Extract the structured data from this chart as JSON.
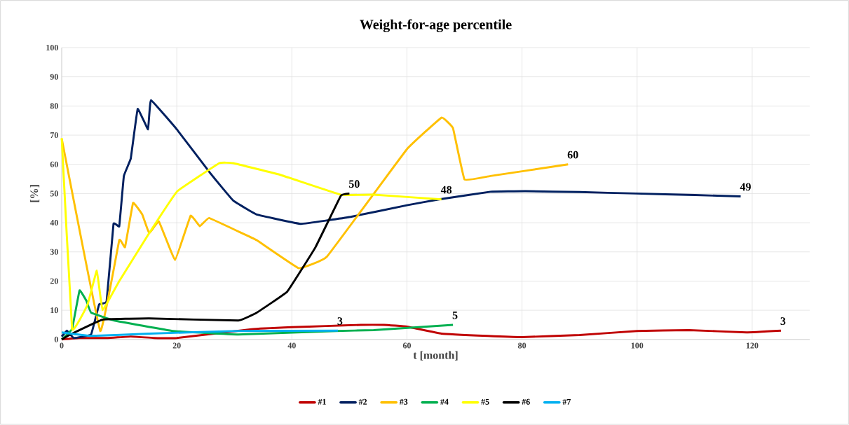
{
  "chart_data": {
    "type": "line",
    "title": "Weight-for-age percentile",
    "xlabel": "t [month]",
    "ylabel": "[%]",
    "xlim": [
      0,
      130
    ],
    "xticks": [
      0,
      20,
      40,
      60,
      80,
      100,
      120
    ],
    "ylim": [
      0,
      100
    ],
    "yticks": [
      0,
      10,
      20,
      30,
      40,
      50,
      60,
      70,
      80,
      90,
      100
    ],
    "grid": true,
    "legend": "bottom",
    "marker": "none",
    "line_style": "solid",
    "series": [
      {
        "name": "#1",
        "color": "#c00000",
        "x": [
          0,
          3,
          8,
          12,
          16,
          20,
          33,
          40,
          46,
          52,
          56,
          60,
          66,
          74,
          80,
          90,
          100,
          109,
          119,
          125
        ],
        "values": [
          0,
          0.5,
          0.5,
          1,
          0.5,
          0.5,
          3.5,
          4.2,
          4.6,
          5,
          5,
          4.4,
          2,
          1.2,
          0.8,
          1.5,
          2.9,
          3.2,
          2.4,
          3
        ]
      },
      {
        "name": "#2",
        "color": "#002060",
        "x": [
          0,
          0.9,
          2.1,
          5.1,
          6.5,
          7.8,
          9,
          10,
          10.8,
          12,
          13.2,
          15,
          15.5,
          20,
          25.8,
          29.8,
          33.9,
          41.6,
          50.2,
          60,
          65.6,
          74.5,
          80.6,
          90,
          99.8,
          110,
          118
        ],
        "values": [
          1,
          3,
          0.5,
          1.7,
          12,
          13,
          39.6,
          38.8,
          56,
          62,
          79,
          72,
          82,
          72,
          57,
          47.6,
          42.8,
          39.6,
          42,
          46,
          48,
          50.6,
          50.8,
          50.5,
          50,
          49.5,
          49
        ]
      },
      {
        "name": "#3",
        "color": "#ffc000",
        "x": [
          0,
          6.7,
          10,
          11,
          12.4,
          14,
          15.2,
          16.9,
          19.7,
          22.4,
          24,
          25.6,
          30.7,
          33.9,
          41.2,
          46.1,
          60,
          66,
          68,
          70,
          74.5,
          88
        ],
        "values": [
          68.8,
          2.9,
          34,
          31.6,
          46.8,
          42.8,
          36.4,
          40.4,
          27.2,
          42.4,
          38.8,
          41.6,
          37,
          34,
          24.4,
          28.4,
          65.2,
          76,
          72.4,
          54.8,
          56,
          60
        ]
      },
      {
        "name": "#4",
        "color": "#00b050",
        "x": [
          0,
          1.8,
          3.1,
          4.3,
          5.1,
          9.1,
          19.3,
          30.7,
          47.7,
          54.2,
          68
        ],
        "values": [
          0,
          3.6,
          16.8,
          13.2,
          9.2,
          6.5,
          2.9,
          1.7,
          2.9,
          3.2,
          5
        ]
      },
      {
        "name": "#5",
        "color": "#ffff00",
        "x": [
          0,
          1.8,
          4.5,
          6.1,
          7.1,
          10,
          15.2,
          20.1,
          27.4,
          29.8,
          38,
          48.5,
          54.2,
          66
        ],
        "values": [
          69,
          3.6,
          12,
          23.6,
          10,
          20,
          36.4,
          50.8,
          60.4,
          60.4,
          56.4,
          49.6,
          49.6,
          48
        ]
      },
      {
        "name": "#6",
        "color": "#000000",
        "x": [
          0,
          1.5,
          7.1,
          15.2,
          30.7,
          33.9,
          39.2,
          44.1,
          48.5,
          50
        ],
        "values": [
          0,
          1.7,
          6.8,
          7.2,
          6.5,
          9.2,
          16.4,
          31.6,
          49.2,
          50
        ]
      },
      {
        "name": "#7",
        "color": "#00b0f0",
        "x": [
          0,
          5.1,
          15.2,
          30.7,
          48
        ],
        "values": [
          2.4,
          1.2,
          2,
          2.9,
          3
        ]
      }
    ],
    "annotations": [
      {
        "text": "3",
        "x": 125,
        "y": 3
      },
      {
        "text": "49",
        "x": 118,
        "y": 49
      },
      {
        "text": "60",
        "x": 88,
        "y": 60
      },
      {
        "text": "5",
        "x": 68,
        "y": 5
      },
      {
        "text": "48",
        "x": 66,
        "y": 48
      },
      {
        "text": "50",
        "x": 50,
        "y": 50
      },
      {
        "text": "3",
        "x": 48,
        "y": 3
      }
    ]
  }
}
